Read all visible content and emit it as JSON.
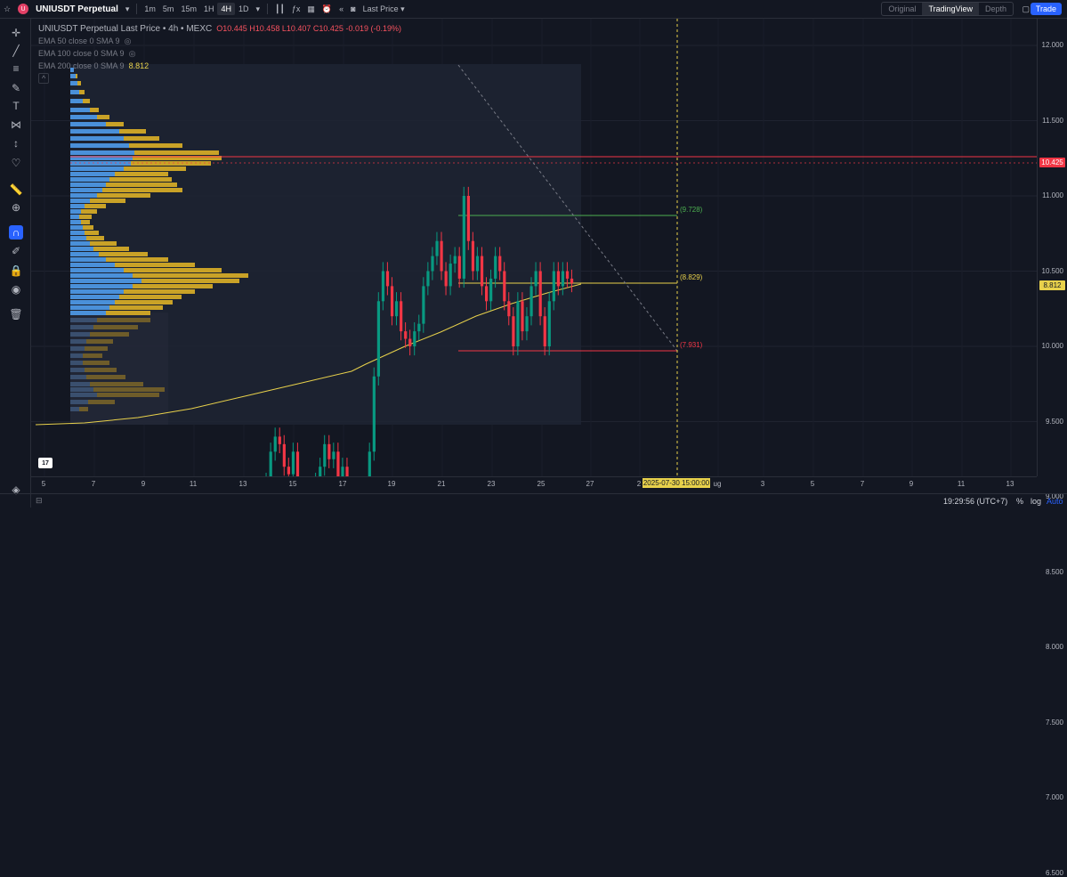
{
  "header": {
    "symbol": "UNIUSDT Perpetual",
    "timeframes": [
      "1m",
      "5m",
      "15m",
      "1H",
      "4H",
      "1D"
    ],
    "active_timeframe": "4H",
    "price_source": "Last Price",
    "view_tabs": [
      "Original",
      "TradingView",
      "Depth"
    ],
    "active_view": "TradingView",
    "trade_label": "Trade"
  },
  "legend": {
    "title": "UNIUSDT Perpetual Last Price • 4h • MEXC",
    "open": "O10.445",
    "high": "H10.458",
    "low": "L10.407",
    "close": "C10.425",
    "change": "-0.019 (-0.19%)",
    "ema50": "EMA 50 close 0 SMA 9",
    "ema100": "EMA 100 close 0 SMA 9",
    "ema200": "EMA 200 close 0 SMA 9",
    "ema200_value": "8.812"
  },
  "price_axis": {
    "labels": [
      "12.000",
      "11.500",
      "11.000",
      "10.500",
      "10.000",
      "9.500",
      "9.000",
      "8.500",
      "8.000",
      "7.500",
      "7.000",
      "6.500"
    ],
    "current_price": "10.425",
    "ema_tag": "8.812"
  },
  "fib_levels": {
    "upper": "(9.728)",
    "mid": "(8.829)",
    "lower": "(7.931)"
  },
  "time_axis": {
    "labels": [
      "5",
      "7",
      "9",
      "11",
      "13",
      "15",
      "17",
      "19",
      "21",
      "23",
      "25",
      "27",
      "2",
      "ug",
      "3",
      "5",
      "7",
      "9",
      "11",
      "13"
    ],
    "crosshair_time": "2025-07-30   15:00:00"
  },
  "status": {
    "clock": "19:29:56 (UTC+7)",
    "percent": "%",
    "log": "log",
    "auto": "Auto"
  },
  "colors": {
    "bg": "#131722",
    "up": "#089981",
    "down": "#f23645",
    "ema200": "#e8d14b",
    "vp_up": "#4a90d9",
    "vp_down": "#c9a227",
    "accent": "#2962ff"
  },
  "icons": {
    "left_toolbar": [
      "crosshair-icon",
      "trend-line-icon",
      "fib-icon",
      "brush-icon",
      "text-icon",
      "pattern-icon",
      "forecast-icon",
      "heart-icon",
      "ruler-icon",
      "zoom-icon",
      "magnet-icon",
      "lock-draw-icon",
      "lock-icon",
      "eye-icon",
      "trash-icon"
    ]
  }
}
